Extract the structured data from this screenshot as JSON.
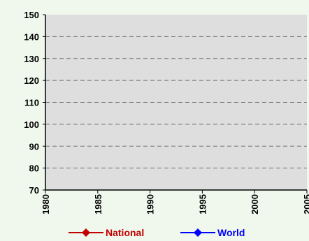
{
  "chart_data": {
    "type": "line",
    "title": "",
    "xlabel": "",
    "ylabel": "",
    "xlim": [
      1980,
      2005
    ],
    "ylim": [
      70,
      150
    ],
    "x_ticks": [
      "1980",
      "1985",
      "1990",
      "1995",
      "2000",
      "2005"
    ],
    "y_ticks": [
      "70",
      "80",
      "90",
      "100",
      "110",
      "120",
      "130",
      "140",
      "150"
    ],
    "grid": true,
    "legend_position": "bottom",
    "series": [
      {
        "name": "National",
        "color": "#c00000",
        "marker": "diamond",
        "x": [],
        "y": []
      },
      {
        "name": "World",
        "color": "#0000ff",
        "marker": "diamond",
        "x": [],
        "y": []
      }
    ]
  },
  "colors": {
    "page_background": "#f0f8ee",
    "plot_background": "#dedede",
    "gridline": "#707070",
    "axis": "#000000"
  }
}
